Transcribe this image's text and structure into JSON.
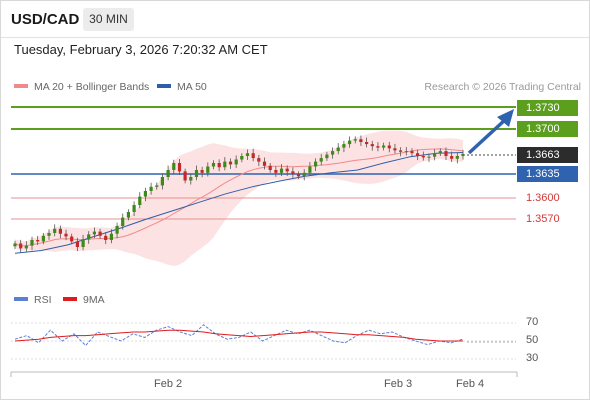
{
  "header": {
    "pair": "USD/CAD",
    "timeframe": "30 MIN"
  },
  "datetime": "Tuesday, February 3, 2026 7:20:32 AM CET",
  "legend": {
    "ma20": {
      "label": "MA 20 + Bollinger Bands",
      "color": "#f08a8a"
    },
    "ma50": {
      "label": "MA 50",
      "color": "#2f5ea8"
    }
  },
  "credit": "Research © 2026 Trading Central",
  "levels": {
    "r2": {
      "label": "1.3730",
      "value": 1.373,
      "color": "#5c9e1e"
    },
    "r1": {
      "label": "1.3700",
      "value": 1.37,
      "color": "#5c9e1e"
    },
    "current": {
      "label": "1.3663",
      "value": 1.3663,
      "color": "#2c2c2c"
    },
    "pivot": {
      "label": "1.3635",
      "value": 1.3635,
      "color": "#2f63b0"
    },
    "s1": {
      "label": "1.3600",
      "value": 1.36,
      "color": "#e07070"
    },
    "s2": {
      "label": "1.3570",
      "value": 1.357,
      "color": "#e07070"
    }
  },
  "x_axis": {
    "labels": [
      "Feb 2",
      "Feb 3",
      "Feb 4"
    ]
  },
  "rsi_panel": {
    "legend_rsi": "RSI",
    "legend_ma": "9MA",
    "rsi_color": "#5a7fd6",
    "ma_color": "#e01b1b",
    "levels": [
      "70",
      "50",
      "30"
    ]
  },
  "chart_data": {
    "type": "candlestick",
    "title": "",
    "xlabel": "",
    "ylabel": "",
    "ylim": [
      1.351,
      1.374
    ],
    "indicators": [
      "MA 20 + Bollinger Bands",
      "MA 50"
    ],
    "close_series": [
      1.3535,
      1.3528,
      1.3532,
      1.354,
      1.3538,
      1.3546,
      1.355,
      1.3556,
      1.3549,
      1.3545,
      1.3538,
      1.353,
      1.3541,
      1.3548,
      1.3552,
      1.3546,
      1.354,
      1.3549,
      1.356,
      1.3572,
      1.358,
      1.359,
      1.3602,
      1.361,
      1.3616,
      1.3618,
      1.363,
      1.364,
      1.365,
      1.3638,
      1.3625,
      1.363,
      1.364,
      1.3636,
      1.3645,
      1.365,
      1.3644,
      1.3652,
      1.3648,
      1.3655,
      1.366,
      1.3664,
      1.3657,
      1.3652,
      1.3646,
      1.364,
      1.3636,
      1.3642,
      1.3638,
      1.3634,
      1.3631,
      1.3636,
      1.3645,
      1.3652,
      1.3657,
      1.3662,
      1.3667,
      1.3672,
      1.3677,
      1.3682,
      1.3684,
      1.368,
      1.3677,
      1.3674,
      1.3672,
      1.3675,
      1.3671,
      1.3668,
      1.3666,
      1.3667,
      1.3664,
      1.366,
      1.3658,
      1.3659,
      1.3664,
      1.3667,
      1.366,
      1.3656,
      1.366,
      1.3663
    ],
    "ma50_series": [
      1.3521,
      1.3525,
      1.3533,
      1.3545,
      1.3557,
      1.357,
      1.3582,
      1.3594,
      1.3606,
      1.3616,
      1.3624,
      1.3631,
      1.3636,
      1.364,
      1.365,
      1.3659,
      1.3664,
      1.3665
    ],
    "rsi": [
      52,
      56,
      48,
      62,
      50,
      58,
      45,
      60,
      55,
      50,
      58,
      54,
      62,
      66,
      60,
      56,
      68,
      58,
      52,
      54,
      60,
      50,
      56,
      62,
      58,
      62,
      56,
      50,
      48,
      56,
      62,
      58,
      60,
      54,
      50,
      46,
      50,
      48,
      52
    ],
    "rsi_ma": [
      50,
      51,
      52,
      54,
      55,
      56,
      56,
      57,
      58,
      59,
      60,
      60,
      61,
      62,
      62,
      61,
      60,
      58,
      57,
      56,
      55,
      56,
      57,
      58,
      59,
      60,
      60,
      59,
      58,
      57,
      57,
      56,
      55,
      54,
      52,
      51,
      50,
      50,
      50
    ],
    "rsi_ylim": [
      20,
      80
    ]
  }
}
